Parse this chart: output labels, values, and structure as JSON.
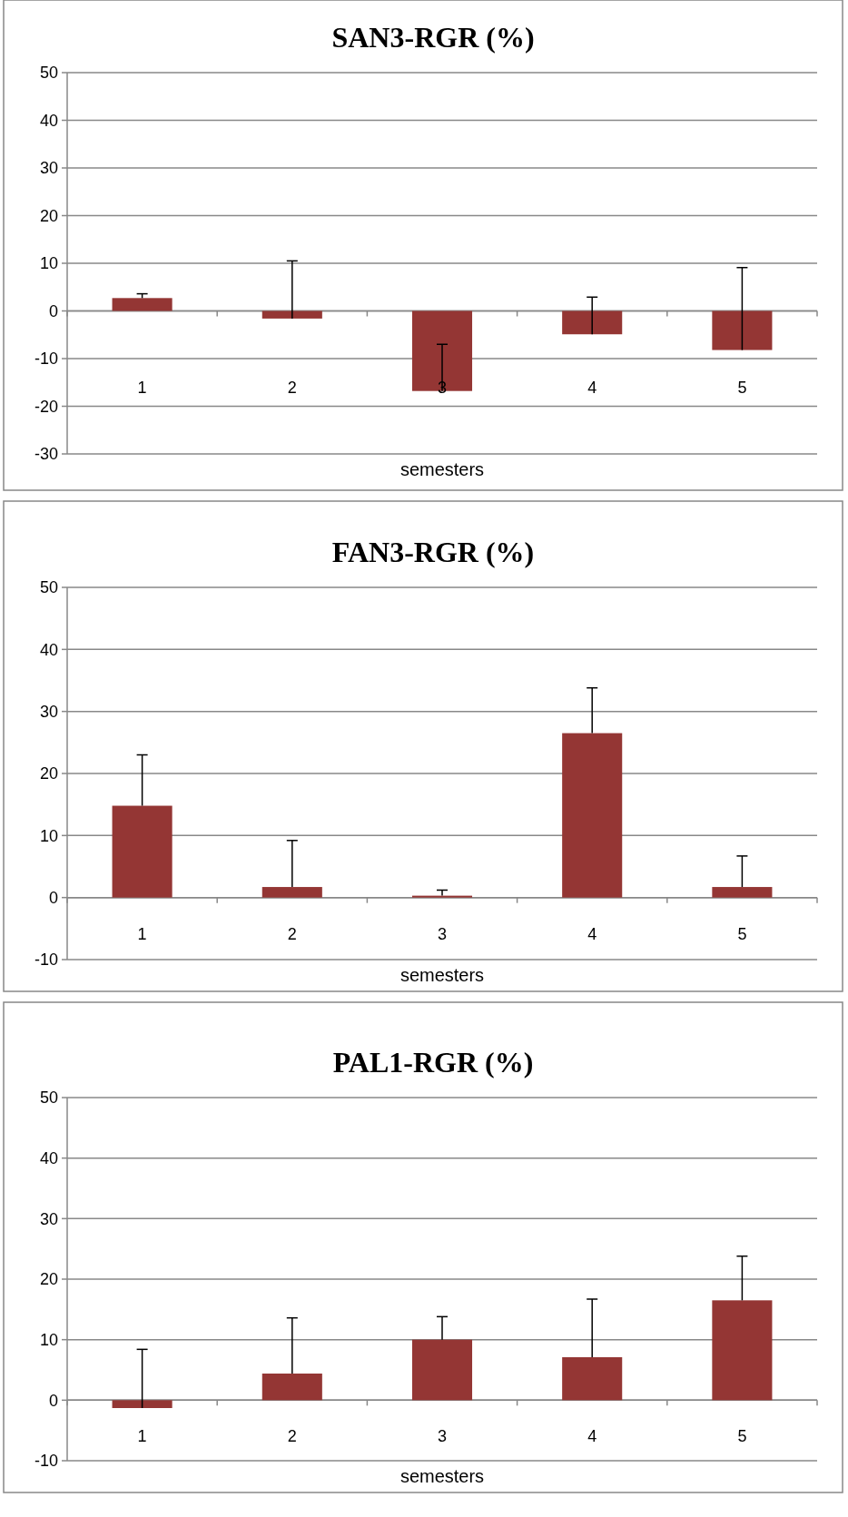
{
  "chart_data": [
    {
      "type": "bar",
      "title": "SAN3-RGR (%)",
      "xlabel": "semesters",
      "categories": [
        "1",
        "2",
        "3",
        "4",
        "5"
      ],
      "values": [
        2.7,
        -1.6,
        -16.8,
        -4.9,
        -8.2
      ],
      "errors": [
        [
          2.7,
          3.6
        ],
        [
          -1.6,
          10.5
        ],
        [
          -16.8,
          -7.0
        ],
        [
          -4.9,
          2.9
        ],
        [
          -8.2,
          9.1
        ]
      ],
      "color": "#943634",
      "ylim": [
        -30,
        50
      ],
      "yticks": [
        -30,
        -20,
        -10,
        0,
        10,
        20,
        30,
        40,
        50
      ],
      "grid": "y",
      "legend": false
    },
    {
      "type": "bar",
      "title": "FAN3-RGR (%)",
      "xlabel": "semesters",
      "categories": [
        "1",
        "2",
        "3",
        "4",
        "5"
      ],
      "values": [
        14.8,
        1.7,
        0.3,
        26.5,
        1.7
      ],
      "errors": [
        [
          14.8,
          23.0
        ],
        [
          1.7,
          9.2
        ],
        [
          0.3,
          1.2
        ],
        [
          26.5,
          33.8
        ],
        [
          1.7,
          6.7
        ]
      ],
      "color": "#943634",
      "ylim": [
        -10,
        50
      ],
      "yticks": [
        -10,
        0,
        10,
        20,
        30,
        40,
        50
      ],
      "grid": "y",
      "legend": false
    },
    {
      "type": "bar",
      "title": "PAL1-RGR (%)",
      "xlabel": "semesters",
      "categories": [
        "1",
        "2",
        "3",
        "4",
        "5"
      ],
      "values": [
        -1.3,
        4.4,
        10.0,
        7.1,
        16.5
      ],
      "errors": [
        [
          -1.3,
          8.4
        ],
        [
          4.4,
          13.6
        ],
        [
          10.0,
          13.8
        ],
        [
          7.1,
          16.7
        ],
        [
          16.5,
          23.8
        ]
      ],
      "color": "#943634",
      "ylim": [
        -10,
        50
      ],
      "yticks": [
        -10,
        0,
        10,
        20,
        30,
        40,
        50
      ],
      "grid": "y",
      "legend": false
    }
  ]
}
